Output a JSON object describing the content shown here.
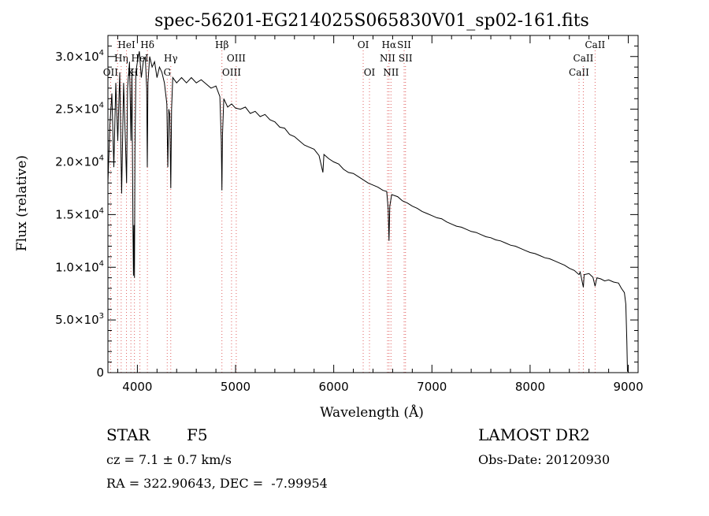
{
  "chart_data": {
    "type": "line",
    "title": "spec-56201-EG214025S065830V01_sp02-161.fits",
    "xlabel": "Wavelength (Å)",
    "ylabel": "Flux (relative)",
    "xlim": [
      3700,
      9100
    ],
    "ylim": [
      0,
      32000
    ],
    "x_ticks": [
      4000,
      5000,
      6000,
      7000,
      8000,
      9000
    ],
    "y_ticks": [
      {
        "value": 0,
        "mantissa": "0",
        "exp": ""
      },
      {
        "value": 5000,
        "mantissa": "5.0×10",
        "exp": "3"
      },
      {
        "value": 10000,
        "mantissa": "1.0×10",
        "exp": "4"
      },
      {
        "value": 15000,
        "mantissa": "1.5×10",
        "exp": "4"
      },
      {
        "value": 20000,
        "mantissa": "2.0×10",
        "exp": "4"
      },
      {
        "value": 25000,
        "mantissa": "2.5×10",
        "exp": "4"
      },
      {
        "value": 30000,
        "mantissa": "3.0×10",
        "exp": "4"
      }
    ],
    "grid": false,
    "series": [
      {
        "line_color": "#000000",
        "points": [
          [
            3700,
            18000
          ],
          [
            3720,
            23500
          ],
          [
            3740,
            26500
          ],
          [
            3760,
            19500
          ],
          [
            3780,
            27500
          ],
          [
            3800,
            22000
          ],
          [
            3820,
            28500
          ],
          [
            3840,
            17000
          ],
          [
            3860,
            27500
          ],
          [
            3880,
            21500
          ],
          [
            3890,
            18000
          ],
          [
            3900,
            27000
          ],
          [
            3920,
            29500
          ],
          [
            3935,
            22000
          ],
          [
            3945,
            28500
          ],
          [
            3955,
            13500
          ],
          [
            3960,
            9200
          ],
          [
            3965,
            14000
          ],
          [
            3970,
            9000
          ],
          [
            3975,
            21000
          ],
          [
            3985,
            28500
          ],
          [
            4000,
            29500
          ],
          [
            4020,
            30500
          ],
          [
            4040,
            28000
          ],
          [
            4060,
            29500
          ],
          [
            4080,
            30000
          ],
          [
            4095,
            27000
          ],
          [
            4101,
            19500
          ],
          [
            4108,
            27500
          ],
          [
            4125,
            30000
          ],
          [
            4150,
            29000
          ],
          [
            4175,
            29500
          ],
          [
            4200,
            28000
          ],
          [
            4225,
            29000
          ],
          [
            4250,
            28500
          ],
          [
            4275,
            27500
          ],
          [
            4300,
            25500
          ],
          [
            4310,
            19500
          ],
          [
            4320,
            25000
          ],
          [
            4330,
            24500
          ],
          [
            4340,
            17500
          ],
          [
            4348,
            25000
          ],
          [
            4360,
            28000
          ],
          [
            4400,
            27500
          ],
          [
            4450,
            28000
          ],
          [
            4500,
            27500
          ],
          [
            4550,
            28000
          ],
          [
            4600,
            27500
          ],
          [
            4650,
            27800
          ],
          [
            4700,
            27400
          ],
          [
            4750,
            27000
          ],
          [
            4800,
            27200
          ],
          [
            4840,
            26200
          ],
          [
            4855,
            22000
          ],
          [
            4861,
            17300
          ],
          [
            4867,
            22500
          ],
          [
            4880,
            26000
          ],
          [
            4920,
            25200
          ],
          [
            4960,
            25500
          ],
          [
            5000,
            25100
          ],
          [
            5050,
            25000
          ],
          [
            5100,
            25200
          ],
          [
            5150,
            24600
          ],
          [
            5200,
            24800
          ],
          [
            5250,
            24300
          ],
          [
            5300,
            24500
          ],
          [
            5350,
            24000
          ],
          [
            5400,
            23800
          ],
          [
            5450,
            23300
          ],
          [
            5500,
            23200
          ],
          [
            5550,
            22600
          ],
          [
            5600,
            22400
          ],
          [
            5650,
            22000
          ],
          [
            5700,
            21600
          ],
          [
            5750,
            21400
          ],
          [
            5800,
            21200
          ],
          [
            5850,
            20600
          ],
          [
            5890,
            19000
          ],
          [
            5900,
            20700
          ],
          [
            5950,
            20300
          ],
          [
            6000,
            20000
          ],
          [
            6050,
            19800
          ],
          [
            6100,
            19300
          ],
          [
            6150,
            19000
          ],
          [
            6200,
            18900
          ],
          [
            6250,
            18600
          ],
          [
            6300,
            18300
          ],
          [
            6350,
            18000
          ],
          [
            6400,
            17800
          ],
          [
            6450,
            17600
          ],
          [
            6500,
            17300
          ],
          [
            6540,
            17200
          ],
          [
            6555,
            15500
          ],
          [
            6563,
            12500
          ],
          [
            6571,
            15800
          ],
          [
            6590,
            16900
          ],
          [
            6650,
            16700
          ],
          [
            6700,
            16300
          ],
          [
            6750,
            16100
          ],
          [
            6800,
            15800
          ],
          [
            6850,
            15600
          ],
          [
            6900,
            15300
          ],
          [
            6950,
            15100
          ],
          [
            7000,
            14900
          ],
          [
            7050,
            14700
          ],
          [
            7100,
            14600
          ],
          [
            7150,
            14300
          ],
          [
            7200,
            14100
          ],
          [
            7250,
            13900
          ],
          [
            7300,
            13800
          ],
          [
            7350,
            13600
          ],
          [
            7400,
            13400
          ],
          [
            7450,
            13300
          ],
          [
            7500,
            13100
          ],
          [
            7550,
            12900
          ],
          [
            7600,
            12800
          ],
          [
            7650,
            12600
          ],
          [
            7700,
            12500
          ],
          [
            7750,
            12300
          ],
          [
            7800,
            12100
          ],
          [
            7850,
            12000
          ],
          [
            7900,
            11800
          ],
          [
            7950,
            11600
          ],
          [
            8000,
            11400
          ],
          [
            8050,
            11300
          ],
          [
            8100,
            11100
          ],
          [
            8150,
            10900
          ],
          [
            8200,
            10800
          ],
          [
            8250,
            10600
          ],
          [
            8300,
            10400
          ],
          [
            8350,
            10200
          ],
          [
            8400,
            9900
          ],
          [
            8450,
            9700
          ],
          [
            8498,
            9300
          ],
          [
            8510,
            9550
          ],
          [
            8542,
            8100
          ],
          [
            8550,
            9300
          ],
          [
            8600,
            9400
          ],
          [
            8640,
            9050
          ],
          [
            8662,
            8200
          ],
          [
            8680,
            9000
          ],
          [
            8720,
            8900
          ],
          [
            8760,
            8700
          ],
          [
            8800,
            8800
          ],
          [
            8850,
            8600
          ],
          [
            8900,
            8500
          ],
          [
            8930,
            8000
          ],
          [
            8960,
            7600
          ],
          [
            8975,
            6500
          ],
          [
            8985,
            3000
          ],
          [
            8992,
            100
          ]
        ]
      }
    ],
    "line_marks": [
      {
        "wl": 3727,
        "label": "OII",
        "row": 3
      },
      {
        "wl": 3798,
        "label": "",
        "row": 0
      },
      {
        "wl": 3835,
        "label": "Hη",
        "row": 2
      },
      {
        "wl": 3889,
        "label": "HeI",
        "row": 1
      },
      {
        "wl": 3934,
        "label": "K",
        "row": 3
      },
      {
        "wl": 3970,
        "label": "H",
        "row": 3
      },
      {
        "wl": 4026,
        "label": "HeI",
        "row": 2
      },
      {
        "wl": 4102,
        "label": "Hδ",
        "row": 1
      },
      {
        "wl": 4304,
        "label": "G",
        "row": 3
      },
      {
        "wl": 4340,
        "label": "Hγ",
        "row": 2
      },
      {
        "wl": 4861,
        "label": "Hβ",
        "row": 1
      },
      {
        "wl": 4959,
        "label": "OIII",
        "row": 3
      },
      {
        "wl": 5007,
        "label": "OIII",
        "row": 2
      },
      {
        "wl": 6300,
        "label": "OI",
        "row": 1
      },
      {
        "wl": 6364,
        "label": "OI",
        "row": 3
      },
      {
        "wl": 6548,
        "label": "NII",
        "row": 2
      },
      {
        "wl": 6563,
        "label": "Hα",
        "row": 1
      },
      {
        "wl": 6583,
        "label": "NII",
        "row": 3
      },
      {
        "wl": 6717,
        "label": "SII",
        "row": 1
      },
      {
        "wl": 6731,
        "label": "SII",
        "row": 2
      },
      {
        "wl": 8498,
        "label": "CaII",
        "row": 3
      },
      {
        "wl": 8542,
        "label": "CaII",
        "row": 2
      },
      {
        "wl": 8662,
        "label": "CaII",
        "row": 1
      }
    ],
    "line_mark_color": "#e06060"
  },
  "info": {
    "class": "STAR",
    "subclass": "F5",
    "survey": "LAMOST DR2",
    "cz": "cz = 7.1 ± 0.7 km/s",
    "obs_date": "Obs-Date: 20120930",
    "radec": "RA = 322.90643, DEC =  -7.99954"
  }
}
